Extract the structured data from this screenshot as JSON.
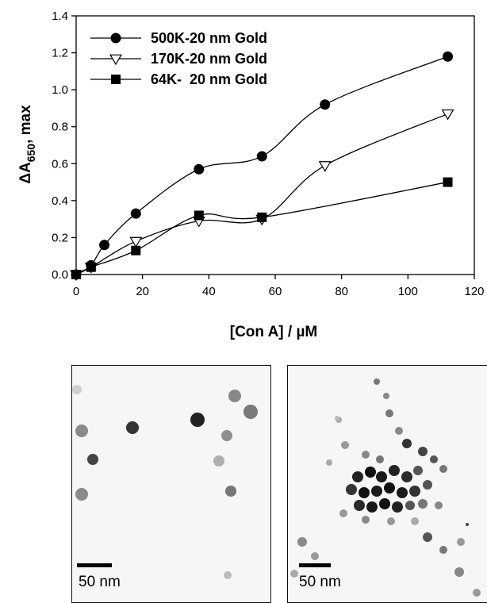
{
  "chart_data": {
    "type": "line",
    "title": "",
    "xlabel": "[Con A] / µM",
    "ylabel_main": "ΔA",
    "ylabel_sub": "650",
    "ylabel_tail": ", max",
    "xlim": [
      0,
      120
    ],
    "ylim": [
      0,
      1.4
    ],
    "xticks": [
      0,
      20,
      40,
      60,
      80,
      100,
      120
    ],
    "yticks": [
      "0.0",
      "0.2",
      "0.4",
      "0.6",
      "0.8",
      "1.0",
      "1.2",
      "1.4"
    ],
    "grid": false,
    "legend_position": "top-left",
    "series": [
      {
        "name": "500K-20 nm Gold",
        "marker": "filled-circle",
        "x": [
          0,
          4.5,
          8.5,
          18,
          37,
          56,
          75,
          112
        ],
        "y": [
          0.0,
          0.05,
          0.16,
          0.33,
          0.57,
          0.64,
          0.92,
          1.18
        ]
      },
      {
        "name": "170K-20 nm Gold",
        "marker": "open-triangle-down",
        "x": [
          0,
          4.5,
          18,
          37,
          56,
          75,
          112
        ],
        "y": [
          0.0,
          0.04,
          0.18,
          0.29,
          0.3,
          0.59,
          0.87
        ]
      },
      {
        "name": "64K-  20 nm Gold",
        "marker": "filled-square",
        "x": [
          0,
          4.5,
          18,
          37,
          56,
          112
        ],
        "y": [
          0.0,
          0.04,
          0.13,
          0.32,
          0.31,
          0.5
        ]
      }
    ]
  },
  "micrographs": [
    {
      "scale_bar_label": "50 nm"
    },
    {
      "scale_bar_label": "50 nm"
    }
  ]
}
